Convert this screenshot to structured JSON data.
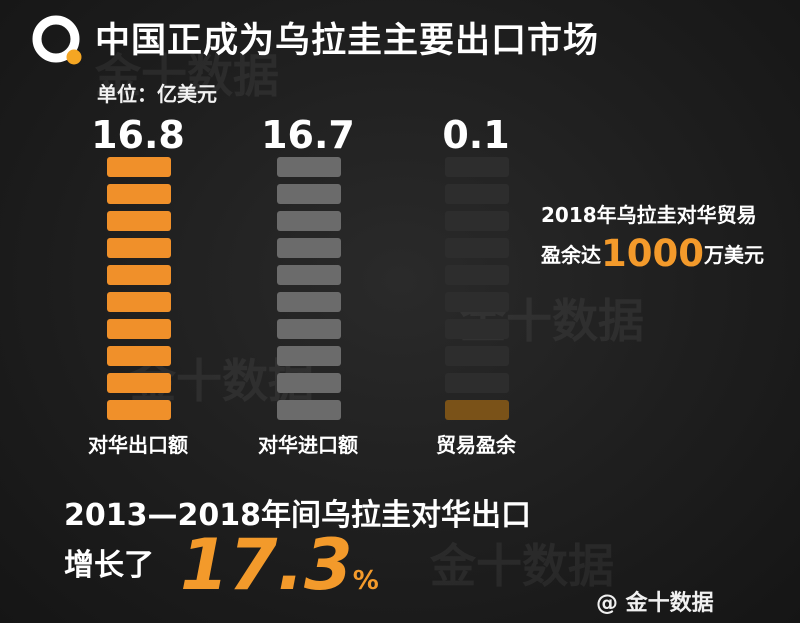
{
  "header": {
    "title": "中国正成为乌拉圭主要出口市场",
    "unit": "单位：亿美元"
  },
  "chart_data": {
    "type": "bar",
    "categories": [
      "对华出口额",
      "对华进口额",
      "贸易盈余"
    ],
    "values": [
      16.8,
      16.7,
      0.1
    ],
    "value_labels": [
      "16.8",
      "16.7",
      "0.1"
    ],
    "ylim": [
      0,
      16.8
    ],
    "segments_per_bar": 10,
    "colors": {
      "export": "#f0902a",
      "import": "#6b6b6b",
      "surplus_empty": "#2d2d2d",
      "surplus_fill": "#7a5218"
    }
  },
  "notes": {
    "surplus_line1": "2018年乌拉圭对华贸易",
    "surplus_prefix": "盈余达",
    "surplus_value": "1000",
    "surplus_unit": "万美元"
  },
  "growth": {
    "line1": "2013—2018年间乌拉圭对华出口",
    "line2": "增长了",
    "value": "17.3",
    "unit": "%"
  },
  "credit": "@ 金十数据",
  "watermark": "金十数据"
}
